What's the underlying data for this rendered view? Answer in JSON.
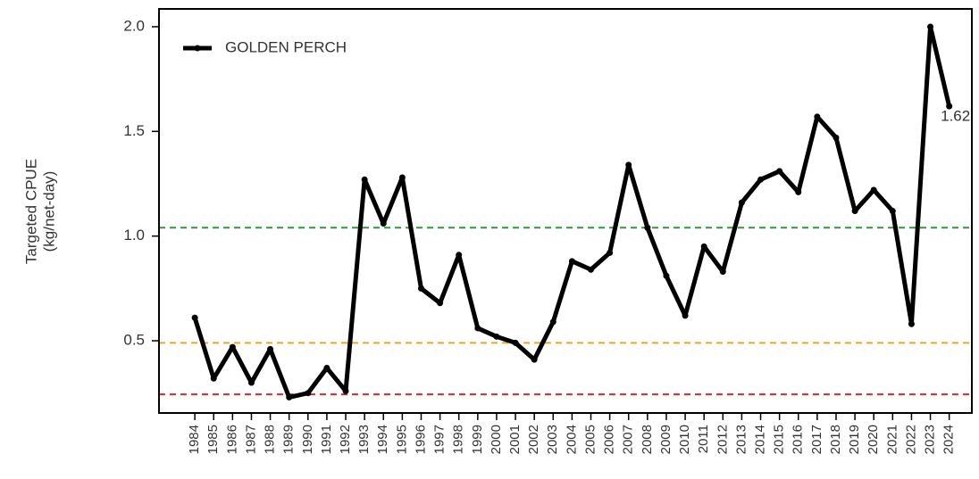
{
  "chart_data": {
    "type": "line",
    "ylabel": [
      "Targeted CPUE",
      "(kg/net-day)"
    ],
    "x": [
      1984,
      1985,
      1986,
      1987,
      1988,
      1989,
      1990,
      1991,
      1992,
      1993,
      1994,
      1995,
      1996,
      1997,
      1998,
      1999,
      2000,
      2001,
      2002,
      2003,
      2004,
      2005,
      2006,
      2007,
      2008,
      2009,
      2010,
      2011,
      2012,
      2013,
      2014,
      2015,
      2016,
      2017,
      2018,
      2019,
      2020,
      2021,
      2022,
      2023,
      2024
    ],
    "series": [
      {
        "name": "GOLDEN PERCH",
        "color": "#000000",
        "values": [
          0.61,
          0.32,
          0.47,
          0.3,
          0.46,
          0.23,
          0.25,
          0.37,
          0.26,
          1.27,
          1.06,
          1.28,
          0.75,
          0.68,
          0.91,
          0.56,
          0.52,
          0.49,
          0.41,
          0.59,
          0.88,
          0.84,
          0.92,
          1.34,
          1.04,
          0.81,
          0.62,
          0.95,
          0.83,
          1.16,
          1.27,
          1.31,
          1.21,
          1.57,
          1.47,
          1.12,
          1.22,
          1.12,
          0.58,
          2.0,
          1.62
        ],
        "value_labels": [
          null,
          null,
          null,
          null,
          null,
          null,
          null,
          null,
          null,
          null,
          null,
          null,
          null,
          null,
          null,
          null,
          null,
          null,
          null,
          null,
          null,
          null,
          null,
          null,
          null,
          null,
          null,
          null,
          null,
          null,
          null,
          null,
          null,
          null,
          null,
          null,
          null,
          null,
          null,
          null,
          "1.62"
        ]
      }
    ],
    "reference_lines": [
      {
        "value": 1.04,
        "color": "#2e9e2e"
      },
      {
        "value": 0.49,
        "color": "#f0a818"
      },
      {
        "value": 0.244,
        "color": "#e0262a"
      }
    ],
    "xlim": [
      1982.1,
      2025.2
    ],
    "xticks": [
      1984,
      1985,
      1986,
      1987,
      1988,
      1989,
      1990,
      1991,
      1992,
      1993,
      1994,
      1995,
      1996,
      1997,
      1998,
      1999,
      2000,
      2001,
      2002,
      2003,
      2004,
      2005,
      2006,
      2007,
      2008,
      2009,
      2010,
      2011,
      2012,
      2013,
      2014,
      2015,
      2016,
      2017,
      2018,
      2019,
      2020,
      2021,
      2022,
      2023,
      2024
    ],
    "ylim": [
      0.155,
      2.085
    ],
    "yticks": [
      0.5,
      {
        "value": 1,
        "label": "1.0"
      },
      1.5,
      {
        "value": 2,
        "label": "2.0"
      }
    ],
    "legend": "top-left"
  }
}
